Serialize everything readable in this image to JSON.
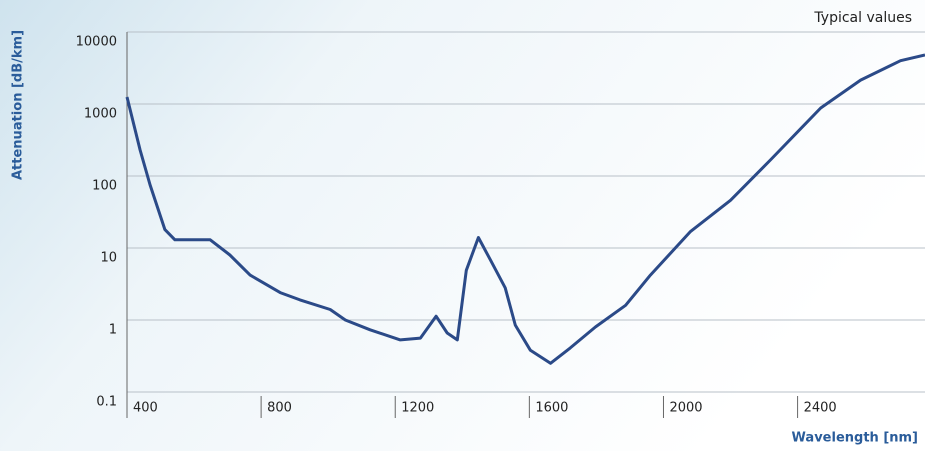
{
  "chart_data": {
    "type": "line",
    "title": "Typical values",
    "y_label": "Attenuation [dB/km]",
    "x_label": "Wavelength [nm]",
    "log_y": true,
    "grid": true,
    "xlim": [
      400,
      2780
    ],
    "ylim": [
      0.1,
      10000
    ],
    "xticks": [
      400,
      800,
      1200,
      1600,
      2000,
      2400
    ],
    "yticks": [
      0.1,
      1,
      10,
      100,
      1000,
      10000
    ],
    "series": [
      {
        "color": "#2b4a88",
        "x": [
          400,
          439,
          469,
          513,
          543,
          648,
          707,
          767,
          857,
          916,
          1006,
          1051,
          1125,
          1215,
          1275,
          1322,
          1355,
          1385,
          1412,
          1448,
          1484,
          1528,
          1558,
          1603,
          1663,
          1722,
          1797,
          1887,
          1961,
          2081,
          2200,
          2319,
          2469,
          2588,
          2707,
          2780
        ],
        "values": [
          1250,
          230,
          75,
          18,
          13,
          13,
          8,
          4.2,
          2.4,
          1.9,
          1.4,
          1.0,
          0.73,
          0.53,
          0.56,
          1.13,
          0.66,
          0.53,
          4.9,
          14,
          6.8,
          2.8,
          0.85,
          0.38,
          0.25,
          0.41,
          0.8,
          1.6,
          4.2,
          17,
          46,
          167,
          880,
          2150,
          4000,
          4800
        ]
      }
    ]
  }
}
